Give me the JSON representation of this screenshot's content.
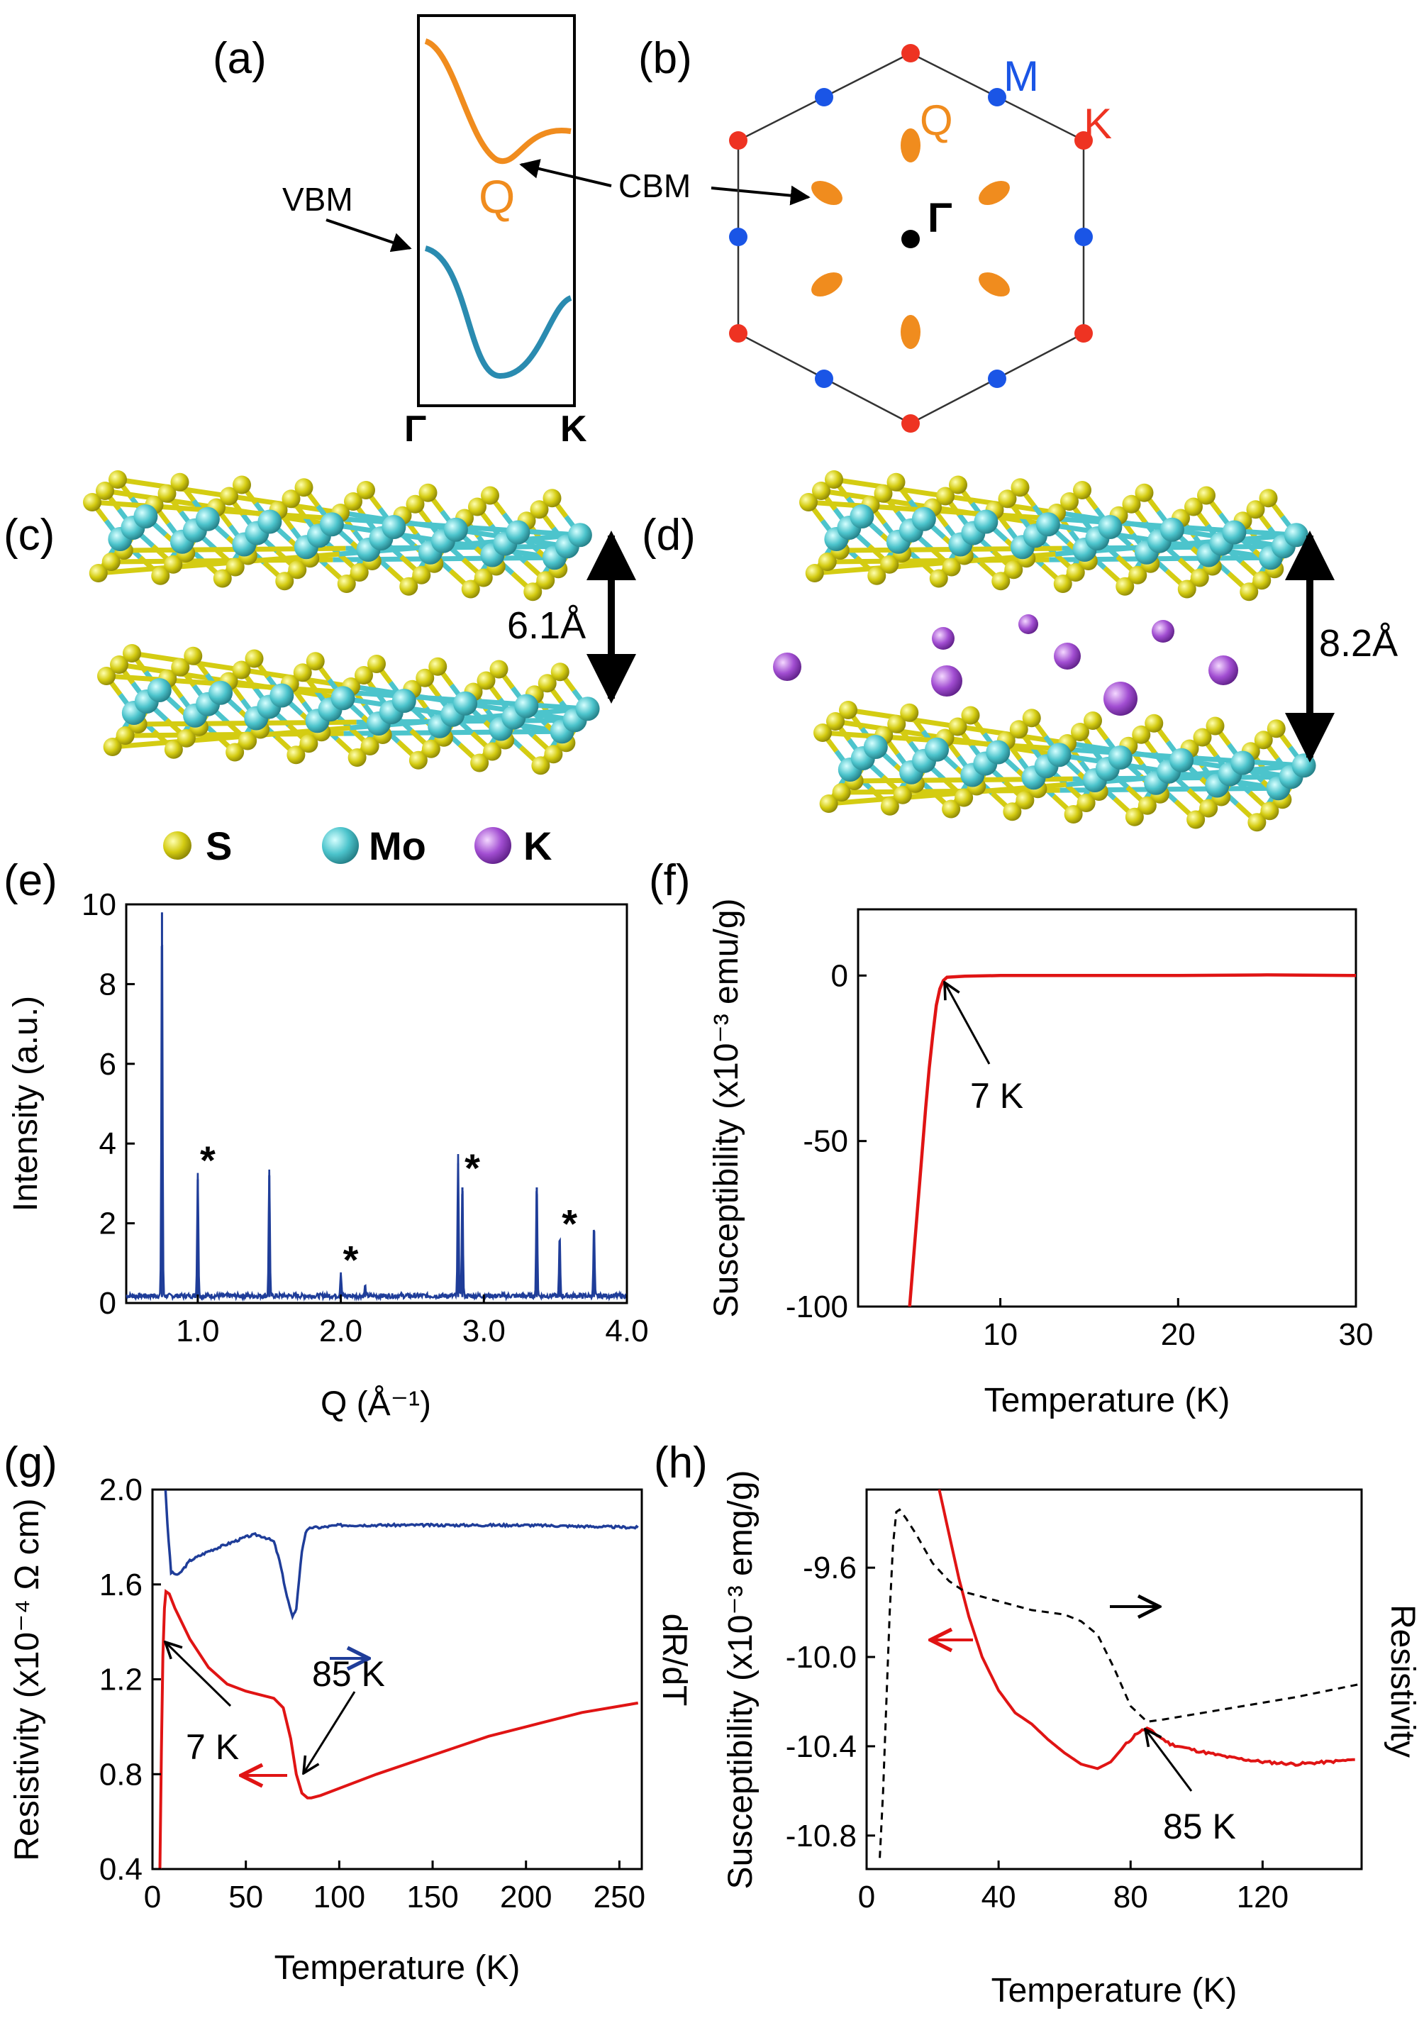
{
  "panels": {
    "a": {
      "label": "(a)",
      "gamma_label": "Γ",
      "k_label": "K",
      "q_label": "Q",
      "vbm_label": "VBM",
      "cbm_label": "CBM",
      "colors": {
        "conduction": "#f08c1e",
        "valence": "#2a8bb0"
      }
    },
    "b": {
      "label": "(b)",
      "m_label": "M",
      "k_label": "K",
      "q_label": "Q",
      "gamma_label": "Γ",
      "colors": {
        "m": "#1a55e6",
        "k": "#ee3322",
        "q": "#f08c1e",
        "gamma": "#000000"
      }
    },
    "c": {
      "label": "(c)",
      "spacing_label": "6.1Å"
    },
    "d": {
      "label": "(d)",
      "spacing_label": "8.2Å"
    },
    "legend": {
      "s_label": "S",
      "mo_label": "Mo",
      "k_label": "K",
      "colors": {
        "s": "#d4cc12",
        "mo": "#4cc4cc",
        "k": "#a24ed2"
      }
    },
    "e": {
      "label": "(e)",
      "star": "*"
    },
    "f": {
      "label": "(f)",
      "annotation": "7 K"
    },
    "g": {
      "label": "(g)",
      "annotation_7k": "7 K",
      "annotation_85k": "85 K"
    },
    "h": {
      "label": "(h)",
      "annotation": "85 K"
    }
  },
  "chart_data": [
    {
      "id": "e",
      "type": "line",
      "xlabel": "Q (Å⁻¹)",
      "ylabel": "Intensity (a.u.)",
      "xlim": [
        0.5,
        4.0
      ],
      "ylim": [
        0,
        10
      ],
      "xticks": [
        "1.0",
        "2.0",
        "3.0",
        "4.0"
      ],
      "yticks": [
        "0",
        "2",
        "4",
        "6",
        "8",
        "10"
      ],
      "color": "#1f3d99",
      "peaks": [
        {
          "q": 0.75,
          "intensity": 9.8
        },
        {
          "q": 1.0,
          "intensity": 3.1,
          "starred": true
        },
        {
          "q": 1.5,
          "intensity": 3.2
        },
        {
          "q": 2.0,
          "intensity": 0.6,
          "starred": true
        },
        {
          "q": 2.17,
          "intensity": 0.25
        },
        {
          "q": 2.82,
          "intensity": 3.5
        },
        {
          "q": 2.85,
          "intensity": 2.9,
          "starred": true
        },
        {
          "q": 3.37,
          "intensity": 2.9
        },
        {
          "q": 3.53,
          "intensity": 1.5,
          "starred": true
        },
        {
          "q": 3.77,
          "intensity": 1.8
        }
      ]
    },
    {
      "id": "f",
      "type": "line",
      "xlabel": "Temperature (K)",
      "ylabel": "Susceptibility (x10⁻³ emu/g)",
      "xlim": [
        2,
        30
      ],
      "ylim": [
        -100,
        20
      ],
      "xticks": [
        "10",
        "20",
        "30"
      ],
      "yticks": [
        "-100",
        "-50",
        "0"
      ],
      "color": "#e01414",
      "x": [
        4.9,
        5.2,
        5.5,
        5.8,
        6.0,
        6.2,
        6.4,
        6.6,
        6.8,
        7.0,
        8.0,
        10.0,
        15.0,
        20.0,
        25.0,
        30.0
      ],
      "y": [
        -100,
        -80,
        -60,
        -40,
        -28,
        -18,
        -9,
        -4,
        -1.5,
        -0.5,
        -0.2,
        0,
        0,
        0,
        0.2,
        0
      ]
    },
    {
      "id": "g",
      "type": "line",
      "xlabel": "Temperature (K)",
      "ylabel": "Resistivity (x10⁻⁴ Ω cm)",
      "ylabel_right": "dR/dT",
      "xlim": [
        0,
        262
      ],
      "ylim": [
        0.4,
        2.0
      ],
      "xticks": [
        "0",
        "50",
        "100",
        "150",
        "200",
        "250"
      ],
      "yticks": [
        "0.4",
        "0.8",
        "1.2",
        "1.6",
        "2.0"
      ],
      "series": [
        {
          "name": "Resistivity",
          "color": "#e01414",
          "x": [
            4,
            4.8,
            5.6,
            6.4,
            7.2,
            9,
            12,
            20,
            30,
            40,
            50,
            60,
            65,
            70,
            74,
            77,
            80,
            83,
            85,
            90,
            100,
            120,
            150,
            180,
            200,
            230,
            260
          ],
          "y": [
            0.4,
            0.9,
            1.3,
            1.5,
            1.57,
            1.56,
            1.5,
            1.37,
            1.25,
            1.18,
            1.15,
            1.13,
            1.12,
            1.08,
            0.95,
            0.8,
            0.72,
            0.7,
            0.7,
            0.71,
            0.74,
            0.8,
            0.88,
            0.96,
            1.0,
            1.06,
            1.1
          ]
        },
        {
          "name": "dR/dT",
          "color": "#1f3d99",
          "x": [
            7,
            8,
            10,
            14,
            20,
            30,
            40,
            50,
            55,
            60,
            65,
            68,
            72,
            75,
            77,
            80,
            82,
            85,
            90,
            100,
            150,
            200,
            260
          ],
          "y": [
            2.0,
            1.85,
            1.65,
            1.64,
            1.7,
            1.74,
            1.77,
            1.8,
            1.81,
            1.8,
            1.78,
            1.7,
            1.55,
            1.46,
            1.5,
            1.74,
            1.82,
            1.84,
            1.84,
            1.85,
            1.85,
            1.85,
            1.84
          ]
        }
      ]
    },
    {
      "id": "h",
      "type": "line",
      "xlabel": "Temperature (K)",
      "ylabel": "Susceptibility (x10⁻³ emg/g)",
      "ylabel_right": "Resistivity",
      "xlim": [
        0,
        150
      ],
      "ylim": [
        -10.95,
        -9.25
      ],
      "xticks": [
        "0",
        "40",
        "80",
        "120"
      ],
      "yticks": [
        "-10.8",
        "-10.4",
        "-10.0",
        "-9.6"
      ],
      "series": [
        {
          "name": "Susceptibility",
          "color": "#e01414",
          "x": [
            22,
            25,
            28,
            31,
            35,
            40,
            45,
            50,
            55,
            60,
            65,
            70,
            74,
            78,
            82,
            85,
            88,
            92,
            100,
            110,
            120,
            130,
            140,
            148
          ],
          "y": [
            -9.25,
            -9.45,
            -9.65,
            -9.82,
            -10.0,
            -10.15,
            -10.25,
            -10.3,
            -10.37,
            -10.43,
            -10.48,
            -10.5,
            -10.47,
            -10.4,
            -10.34,
            -10.32,
            -10.35,
            -10.39,
            -10.42,
            -10.45,
            -10.47,
            -10.48,
            -10.47,
            -10.46
          ]
        },
        {
          "name": "Resistivity",
          "color": "#000000",
          "x": [
            4,
            5,
            6,
            7,
            8,
            9,
            10,
            12,
            15,
            20,
            25,
            30,
            40,
            50,
            60,
            65,
            70,
            75,
            80,
            85,
            90,
            110,
            130,
            150
          ],
          "y": [
            -10.9,
            -10.6,
            -10.2,
            -9.8,
            -9.5,
            -9.35,
            -9.34,
            -9.38,
            -9.45,
            -9.58,
            -9.66,
            -9.71,
            -9.75,
            -9.79,
            -9.81,
            -9.84,
            -9.9,
            -10.05,
            -10.22,
            -10.29,
            -10.28,
            -10.23,
            -10.18,
            -10.12
          ]
        }
      ]
    }
  ]
}
